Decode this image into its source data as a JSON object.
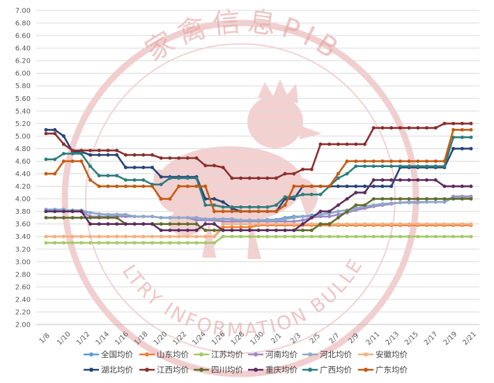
{
  "chart_data": {
    "type": "line",
    "ylim": [
      2.0,
      7.0
    ],
    "y_ticks": [
      "2.00",
      "2.20",
      "2.40",
      "2.60",
      "2.80",
      "3.00",
      "3.20",
      "3.40",
      "3.60",
      "3.80",
      "4.00",
      "4.20",
      "4.40",
      "4.60",
      "4.80",
      "5.00",
      "5.20",
      "5.40",
      "5.60",
      "5.80",
      "6.00",
      "6.20",
      "6.40",
      "6.60",
      "6.80",
      "7.00"
    ],
    "x_ticks": [
      "1/8",
      "1/10",
      "1/12",
      "1/14",
      "1/16",
      "1/18",
      "1/20",
      "1/22",
      "1/24",
      "1/26",
      "1/28",
      "1/30",
      "2/1",
      "2/3",
      "2/5",
      "2/7",
      "2/9",
      "2/11",
      "2/13",
      "2/15",
      "2/17",
      "2/19",
      "2/21"
    ],
    "grid": true,
    "legend_position": "bottom",
    "watermark": {
      "text_top": "家禽信息PIB",
      "text_bottom": "POULTRY INFORMATION BULLETIN",
      "color": "#e8a5a5"
    },
    "series": [
      {
        "name": "全国均价",
        "color": "#5b9bd5",
        "values": [
          3.83,
          3.83,
          3.83,
          3.8,
          3.8,
          3.78,
          3.76,
          3.75,
          3.75,
          3.75,
          3.72,
          3.72,
          3.72,
          3.7,
          3.7,
          3.7,
          3.7,
          3.7,
          3.68,
          3.68,
          3.68,
          3.68,
          3.66,
          3.66,
          3.66,
          3.67,
          3.67,
          3.7,
          3.72,
          3.72,
          3.74,
          3.75,
          3.77,
          3.8,
          3.82,
          3.85,
          3.88,
          3.9,
          3.92,
          3.93,
          3.94,
          3.94,
          3.94,
          3.95,
          3.95,
          3.95,
          4.02,
          4.02,
          4.02
        ]
      },
      {
        "name": "山东均价",
        "color": "#ed7d31",
        "values": [
          3.4,
          3.4,
          3.4,
          3.4,
          3.4,
          3.4,
          3.4,
          3.4,
          3.4,
          3.4,
          3.4,
          3.4,
          3.4,
          3.4,
          3.4,
          3.4,
          3.4,
          3.4,
          3.4,
          3.4,
          3.55,
          3.55,
          3.55,
          3.55,
          3.58,
          3.58,
          3.58,
          3.58,
          3.58,
          3.58,
          3.58,
          3.58,
          3.58,
          3.58,
          3.58,
          3.58,
          3.58,
          3.58,
          3.58,
          3.58,
          3.58,
          3.58,
          3.58,
          3.58,
          3.58,
          3.58,
          3.58,
          3.58,
          3.58
        ]
      },
      {
        "name": "江苏均价",
        "color": "#a5c96a",
        "values": [
          3.3,
          3.3,
          3.3,
          3.3,
          3.3,
          3.3,
          3.3,
          3.3,
          3.3,
          3.3,
          3.3,
          3.3,
          3.3,
          3.3,
          3.3,
          3.3,
          3.3,
          3.3,
          3.3,
          3.3,
          3.4,
          3.4,
          3.4,
          3.4,
          3.4,
          3.4,
          3.4,
          3.4,
          3.4,
          3.4,
          3.4,
          3.4,
          3.4,
          3.4,
          3.4,
          3.4,
          3.4,
          3.4,
          3.4,
          3.4,
          3.4,
          3.4,
          3.4,
          3.4,
          3.4,
          3.4,
          3.4,
          3.4,
          3.4
        ]
      },
      {
        "name": "河南均价",
        "color": "#9e86c8",
        "values": [
          3.8,
          3.8,
          3.8,
          3.8,
          3.8,
          3.72,
          3.72,
          3.72,
          3.72,
          3.72,
          3.72,
          3.72,
          3.72,
          3.7,
          3.7,
          3.7,
          3.7,
          3.66,
          3.66,
          3.66,
          3.64,
          3.64,
          3.64,
          3.64,
          3.64,
          3.64,
          3.64,
          3.64,
          3.64,
          3.66,
          3.7,
          3.72,
          3.72,
          3.75,
          3.78,
          3.82,
          3.85,
          3.88,
          3.9,
          3.92,
          3.94,
          3.95,
          3.95,
          3.95,
          3.95,
          3.95,
          4.04,
          4.04,
          4.04
        ]
      },
      {
        "name": "河北均价",
        "color": "#8fa9c8",
        "values": [
          3.82,
          3.82,
          3.82,
          3.82,
          3.82,
          3.78,
          3.76,
          3.75,
          3.75,
          3.75,
          3.72,
          3.72,
          3.72,
          3.7,
          3.7,
          3.7,
          3.7,
          3.7,
          3.68,
          3.68,
          3.68,
          3.68,
          3.66,
          3.66,
          3.66,
          3.66,
          3.66,
          3.68,
          3.7,
          3.72,
          3.72,
          3.75,
          3.78,
          3.8,
          3.82,
          3.85,
          3.88,
          3.9,
          3.92,
          3.93,
          3.94,
          3.94,
          3.94,
          3.95,
          3.95,
          3.95,
          4.02,
          4.02,
          4.02
        ]
      },
      {
        "name": "安徽均价",
        "color": "#f4b183",
        "values": [
          3.4,
          3.4,
          3.4,
          3.4,
          3.4,
          3.4,
          3.4,
          3.4,
          3.4,
          3.4,
          3.4,
          3.4,
          3.4,
          3.4,
          3.4,
          3.4,
          3.4,
          3.4,
          3.4,
          3.4,
          3.6,
          3.6,
          3.6,
          3.6,
          3.6,
          3.6,
          3.6,
          3.6,
          3.6,
          3.6,
          3.6,
          3.6,
          3.6,
          3.6,
          3.6,
          3.6,
          3.6,
          3.6,
          3.6,
          3.6,
          3.6,
          3.6,
          3.6,
          3.6,
          3.6,
          3.6,
          3.6,
          3.6,
          3.6
        ]
      },
      {
        "name": "湖北均价",
        "color": "#264478",
        "values": [
          5.1,
          5.1,
          5.0,
          4.75,
          4.75,
          4.7,
          4.7,
          4.7,
          4.7,
          4.5,
          4.5,
          4.5,
          4.5,
          4.35,
          4.35,
          4.35,
          4.35,
          4.35,
          4.0,
          4.0,
          3.95,
          3.85,
          3.8,
          3.8,
          3.8,
          3.8,
          3.8,
          4.0,
          4.0,
          4.2,
          4.2,
          4.2,
          4.2,
          4.2,
          4.2,
          4.2,
          4.2,
          4.2,
          4.2,
          4.2,
          4.5,
          4.5,
          4.5,
          4.5,
          4.5,
          4.5,
          4.8,
          4.8,
          4.8
        ]
      },
      {
        "name": "江西均价",
        "color": "#8b2e2e",
        "values": [
          5.04,
          5.04,
          4.87,
          4.77,
          4.77,
          4.77,
          4.77,
          4.77,
          4.77,
          4.7,
          4.7,
          4.7,
          4.7,
          4.65,
          4.65,
          4.65,
          4.65,
          4.65,
          4.53,
          4.53,
          4.5,
          4.33,
          4.33,
          4.33,
          4.33,
          4.33,
          4.33,
          4.4,
          4.4,
          4.47,
          4.47,
          4.87,
          4.87,
          4.87,
          4.87,
          4.87,
          4.87,
          5.13,
          5.13,
          5.13,
          5.13,
          5.13,
          5.13,
          5.13,
          5.13,
          5.2,
          5.2,
          5.2,
          5.2
        ]
      },
      {
        "name": "四川均价",
        "color": "#636b2f",
        "values": [
          3.7,
          3.7,
          3.7,
          3.7,
          3.7,
          3.7,
          3.7,
          3.7,
          3.7,
          3.6,
          3.6,
          3.6,
          3.6,
          3.6,
          3.6,
          3.6,
          3.6,
          3.6,
          3.5,
          3.5,
          3.5,
          3.5,
          3.5,
          3.5,
          3.5,
          3.5,
          3.5,
          3.5,
          3.5,
          3.5,
          3.5,
          3.6,
          3.6,
          3.7,
          3.8,
          3.9,
          3.9,
          4.0,
          4.0,
          4.0,
          4.0,
          4.0,
          4.0,
          4.0,
          4.0,
          4.0,
          4.0,
          4.0,
          4.0
        ]
      },
      {
        "name": "重庆均价",
        "color": "#5c2d5e",
        "values": [
          3.8,
          3.8,
          3.8,
          3.8,
          3.8,
          3.6,
          3.6,
          3.6,
          3.6,
          3.6,
          3.6,
          3.6,
          3.6,
          3.5,
          3.5,
          3.5,
          3.5,
          3.5,
          3.6,
          3.6,
          3.5,
          3.5,
          3.5,
          3.5,
          3.5,
          3.5,
          3.5,
          3.5,
          3.5,
          3.6,
          3.7,
          3.8,
          3.8,
          3.9,
          4.0,
          4.1,
          4.1,
          4.3,
          4.3,
          4.3,
          4.3,
          4.3,
          4.3,
          4.3,
          4.3,
          4.2,
          4.2,
          4.2,
          4.2
        ]
      },
      {
        "name": "广西均价",
        "color": "#2e7d7d",
        "values": [
          4.63,
          4.63,
          4.72,
          4.72,
          4.72,
          4.52,
          4.37,
          4.37,
          4.37,
          4.3,
          4.3,
          4.3,
          4.23,
          4.23,
          4.33,
          4.33,
          4.33,
          4.33,
          3.9,
          3.9,
          3.87,
          3.87,
          3.87,
          3.87,
          3.87,
          3.87,
          3.9,
          4.03,
          4.03,
          4.07,
          4.07,
          4.07,
          4.2,
          4.33,
          4.4,
          4.52,
          4.52,
          4.52,
          4.52,
          4.52,
          4.52,
          4.52,
          4.52,
          4.52,
          4.52,
          4.52,
          4.98,
          4.98,
          4.98
        ]
      },
      {
        "name": "广东均价",
        "color": "#c55a11",
        "values": [
          4.4,
          4.4,
          4.6,
          4.6,
          4.6,
          4.3,
          4.2,
          4.2,
          4.2,
          4.2,
          4.2,
          4.2,
          4.2,
          4.0,
          4.0,
          4.2,
          4.2,
          4.2,
          4.2,
          3.8,
          3.8,
          3.8,
          3.8,
          3.8,
          3.8,
          3.8,
          3.8,
          3.9,
          4.2,
          4.2,
          4.2,
          4.2,
          4.2,
          4.4,
          4.6,
          4.6,
          4.6,
          4.6,
          4.6,
          4.6,
          4.6,
          4.6,
          4.6,
          4.6,
          4.6,
          4.6,
          5.1,
          5.1,
          5.1
        ]
      }
    ]
  }
}
